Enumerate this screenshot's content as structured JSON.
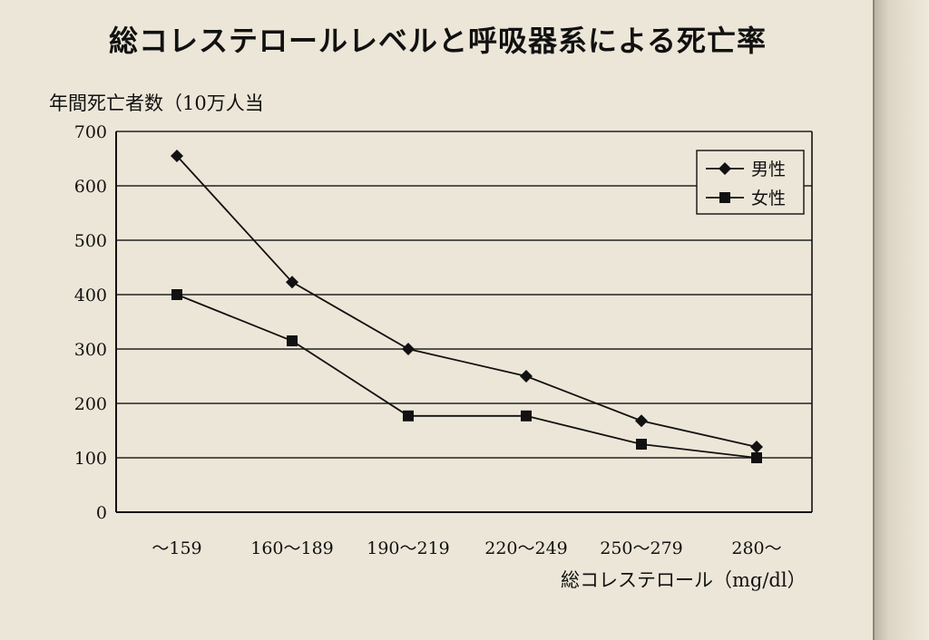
{
  "chart_data": {
    "type": "line",
    "title": "総コレステロールレベルと呼吸器系による死亡率",
    "ylabel": "年間死亡者数（10万人当",
    "xlabel": "総コレステロール（mg/dl）",
    "categories": [
      "〜159",
      "160〜189",
      "190〜219",
      "220〜249",
      "250〜279",
      "280〜"
    ],
    "ylim": [
      0,
      700
    ],
    "yticks": [
      0,
      100,
      200,
      300,
      400,
      500,
      600,
      700
    ],
    "grid": "horizontal",
    "legend_position": "top-right",
    "series": [
      {
        "name": "男性",
        "marker": "diamond",
        "values": [
          655,
          423,
          300,
          250,
          168,
          120
        ]
      },
      {
        "name": "女性",
        "marker": "square",
        "values": [
          400,
          315,
          177,
          177,
          125,
          100
        ]
      }
    ]
  }
}
